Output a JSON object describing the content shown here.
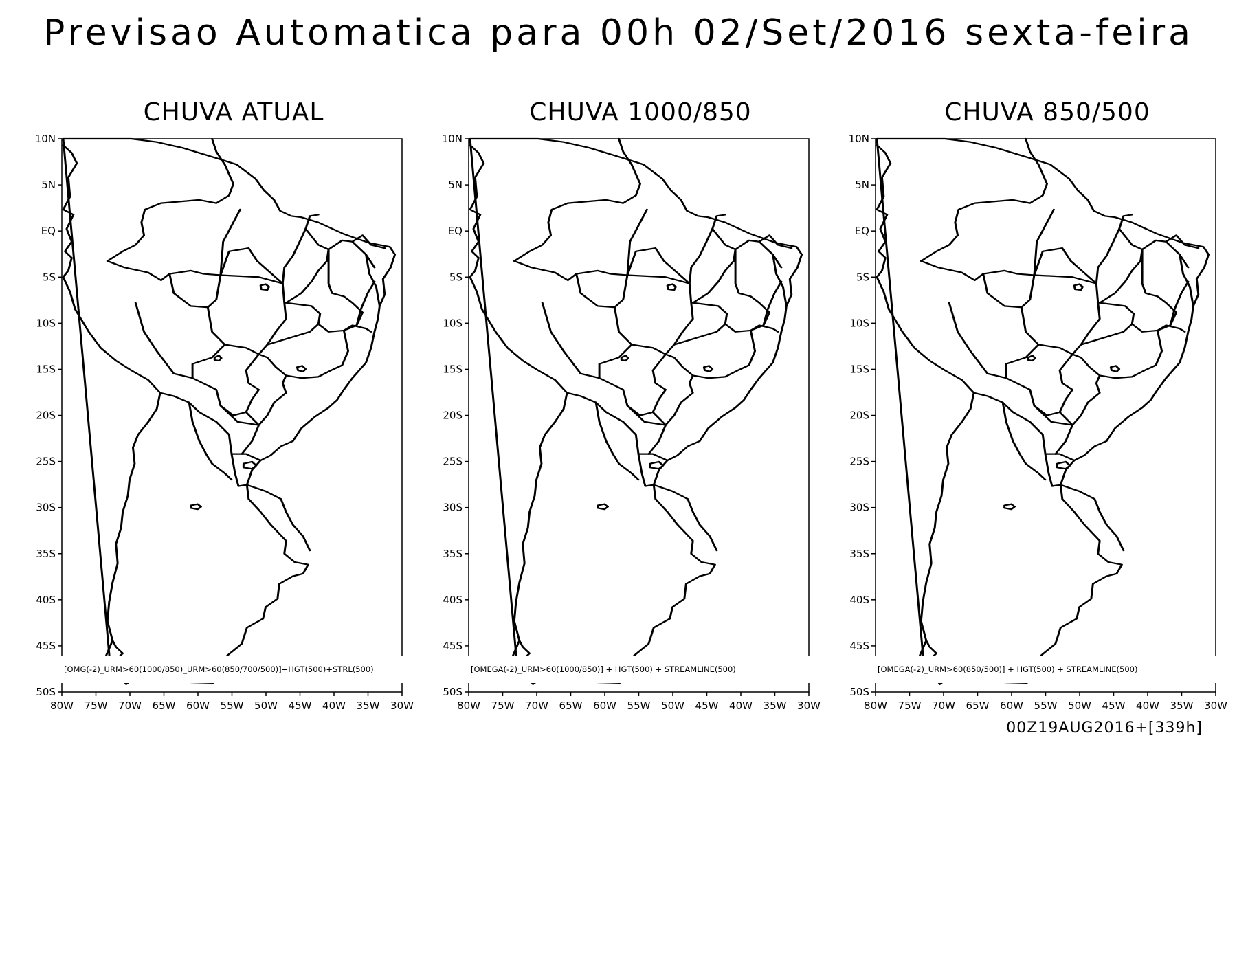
{
  "title": "Previsao Automatica para 00h 02/Set/2016 sexta-feira",
  "run_info": "00Z19AUG2016+[339h]",
  "axes": {
    "lon_labels": [
      "80W",
      "75W",
      "70W",
      "65W",
      "60W",
      "55W",
      "50W",
      "45W",
      "40W",
      "35W",
      "30W"
    ],
    "lat_labels": [
      "10N",
      "5N",
      "EQ",
      "5S",
      "10S",
      "15S",
      "20S",
      "25S",
      "30S",
      "35S",
      "40S",
      "45S",
      "50S"
    ],
    "lon_range": [
      -80,
      -30
    ],
    "lat_range": [
      -50,
      10
    ]
  },
  "panels": [
    {
      "title": "CHUVA ATUAL",
      "annotation": "[OMG(-2)_URM>60(1000/850)_URM>60(850/700/500)]+HGT(500)+STRL(500)"
    },
    {
      "title": "CHUVA 1000/850",
      "annotation": "[OMEGA(-2)_URM>60(1000/850)] + HGT(500) + STREAMLINE(500)"
    },
    {
      "title": "CHUVA 850/500",
      "annotation": "[OMEGA(-2)_URM>60(850/500)] + HGT(500) + STREAMLINE(500)"
    }
  ],
  "colors": {
    "map_line": "#000000",
    "background": "#ffffff"
  }
}
